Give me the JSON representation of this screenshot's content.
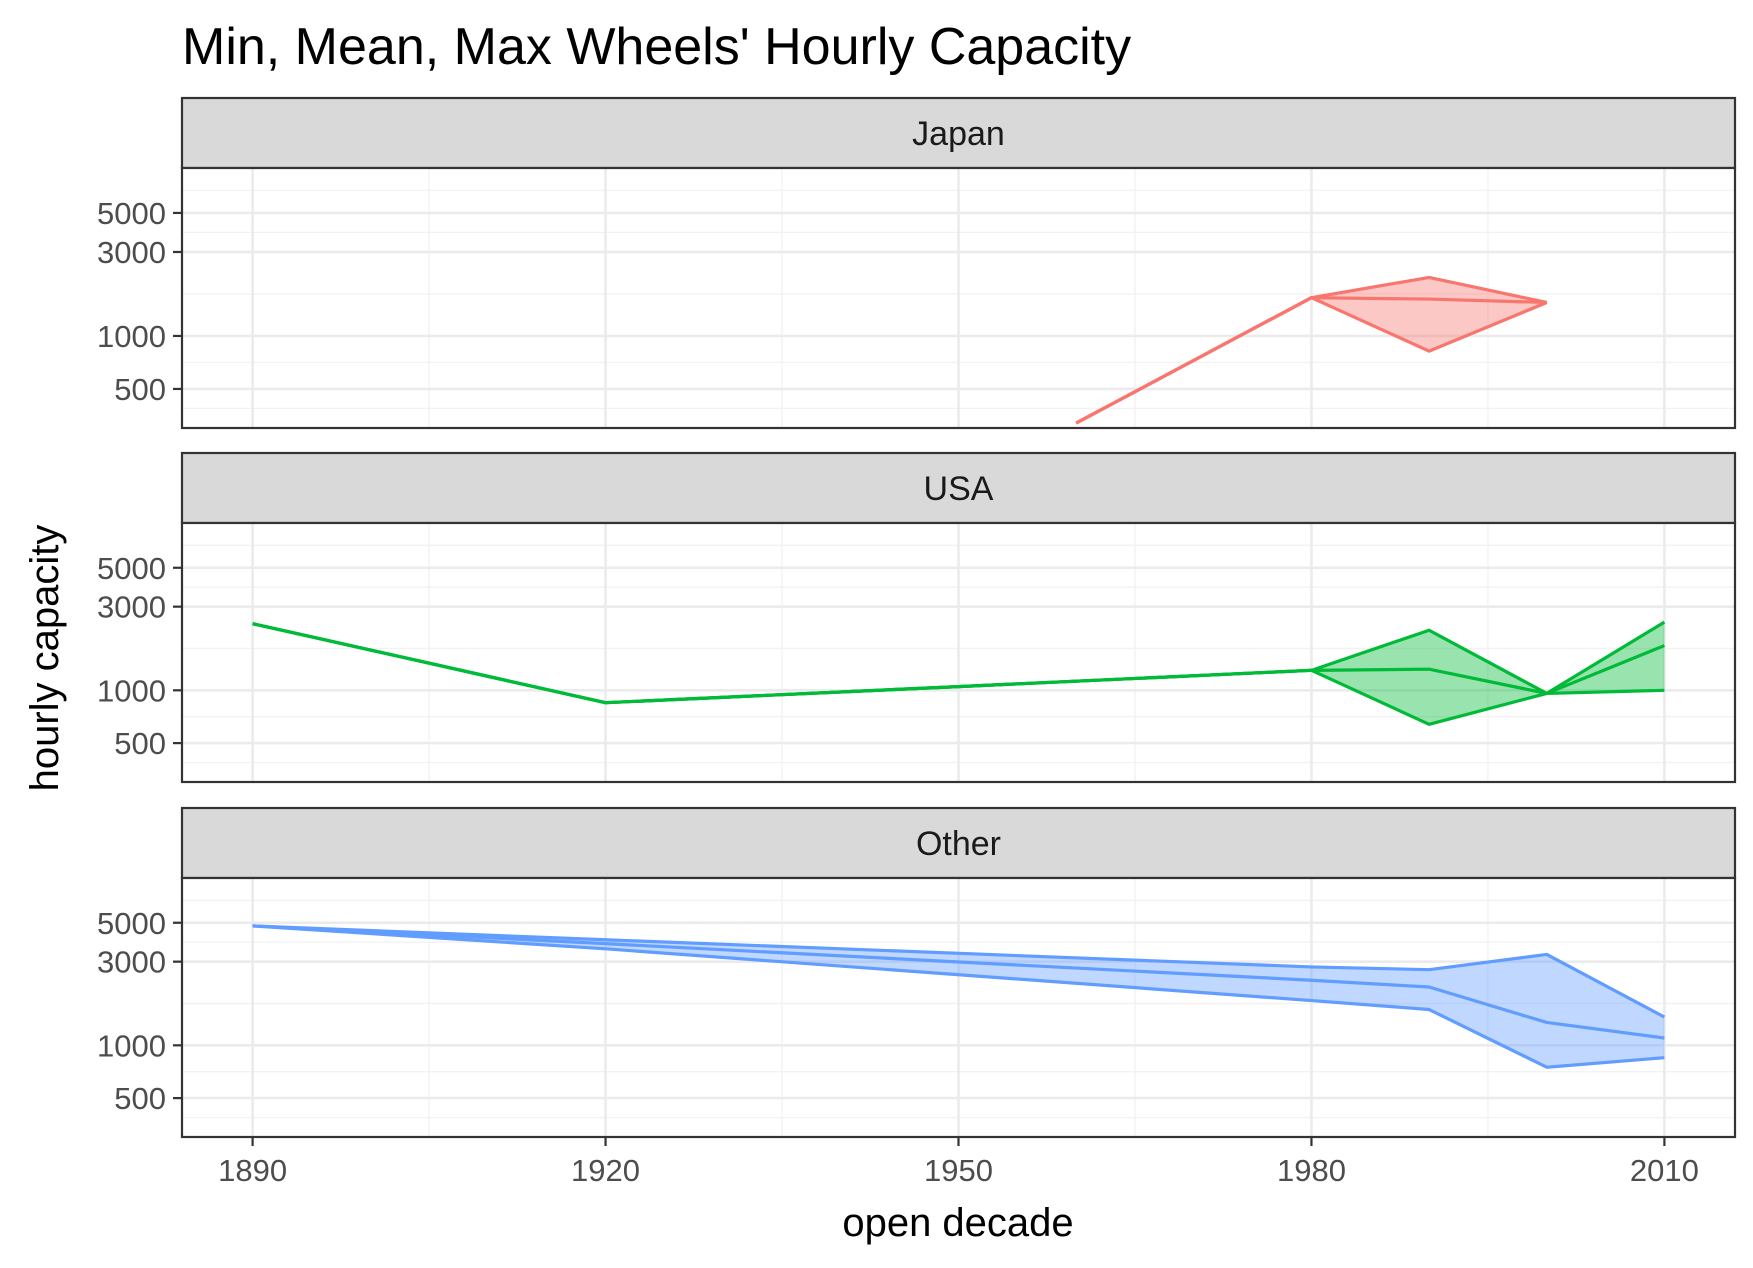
{
  "chart_data": {
    "type": "area",
    "title": "Min, Mean, Max Wheels' Hourly Capacity",
    "xlabel": "open decade",
    "ylabel": "hourly capacity",
    "y_scale": "log10",
    "xlim": [
      1884,
      2016
    ],
    "ylim": [
      300,
      9000
    ],
    "x_ticks": [
      1890,
      1920,
      1950,
      1980,
      2010
    ],
    "x_tick_labels": [
      "1890",
      "1920",
      "1950",
      "1980",
      "2010"
    ],
    "y_ticks": [
      500,
      1000,
      3000,
      5000
    ],
    "y_tick_labels": [
      "500",
      "1000",
      "3000",
      "5000"
    ],
    "grid": true,
    "legend": "none",
    "facets": [
      {
        "name": "Japan",
        "color": "#F8766D",
        "x": [
          1960,
          1980,
          1990,
          2000
        ],
        "min": [
          320,
          1650,
          820,
          1550
        ],
        "mean": [
          320,
          1650,
          1620,
          1550
        ],
        "max": [
          320,
          1650,
          2150,
          1550
        ]
      },
      {
        "name": "USA",
        "color": "#00BA38",
        "x": [
          1890,
          1920,
          1950,
          1980,
          1990,
          2000,
          2010
        ],
        "min": [
          2400,
          850,
          1050,
          1300,
          640,
          960,
          1000
        ],
        "mean": [
          2400,
          850,
          1050,
          1300,
          1320,
          960,
          1800
        ],
        "max": [
          2400,
          850,
          1050,
          1300,
          2200,
          960,
          2450
        ]
      },
      {
        "name": "Other",
        "color": "#619CFF",
        "x": [
          1890,
          1920,
          1980,
          1990,
          2000,
          2010
        ],
        "min": [
          4800,
          3550,
          1800,
          1600,
          750,
          850
        ],
        "mean": [
          4800,
          3800,
          2350,
          2150,
          1350,
          1100
        ],
        "max": [
          4800,
          4000,
          2800,
          2700,
          3300,
          1450
        ]
      }
    ]
  }
}
